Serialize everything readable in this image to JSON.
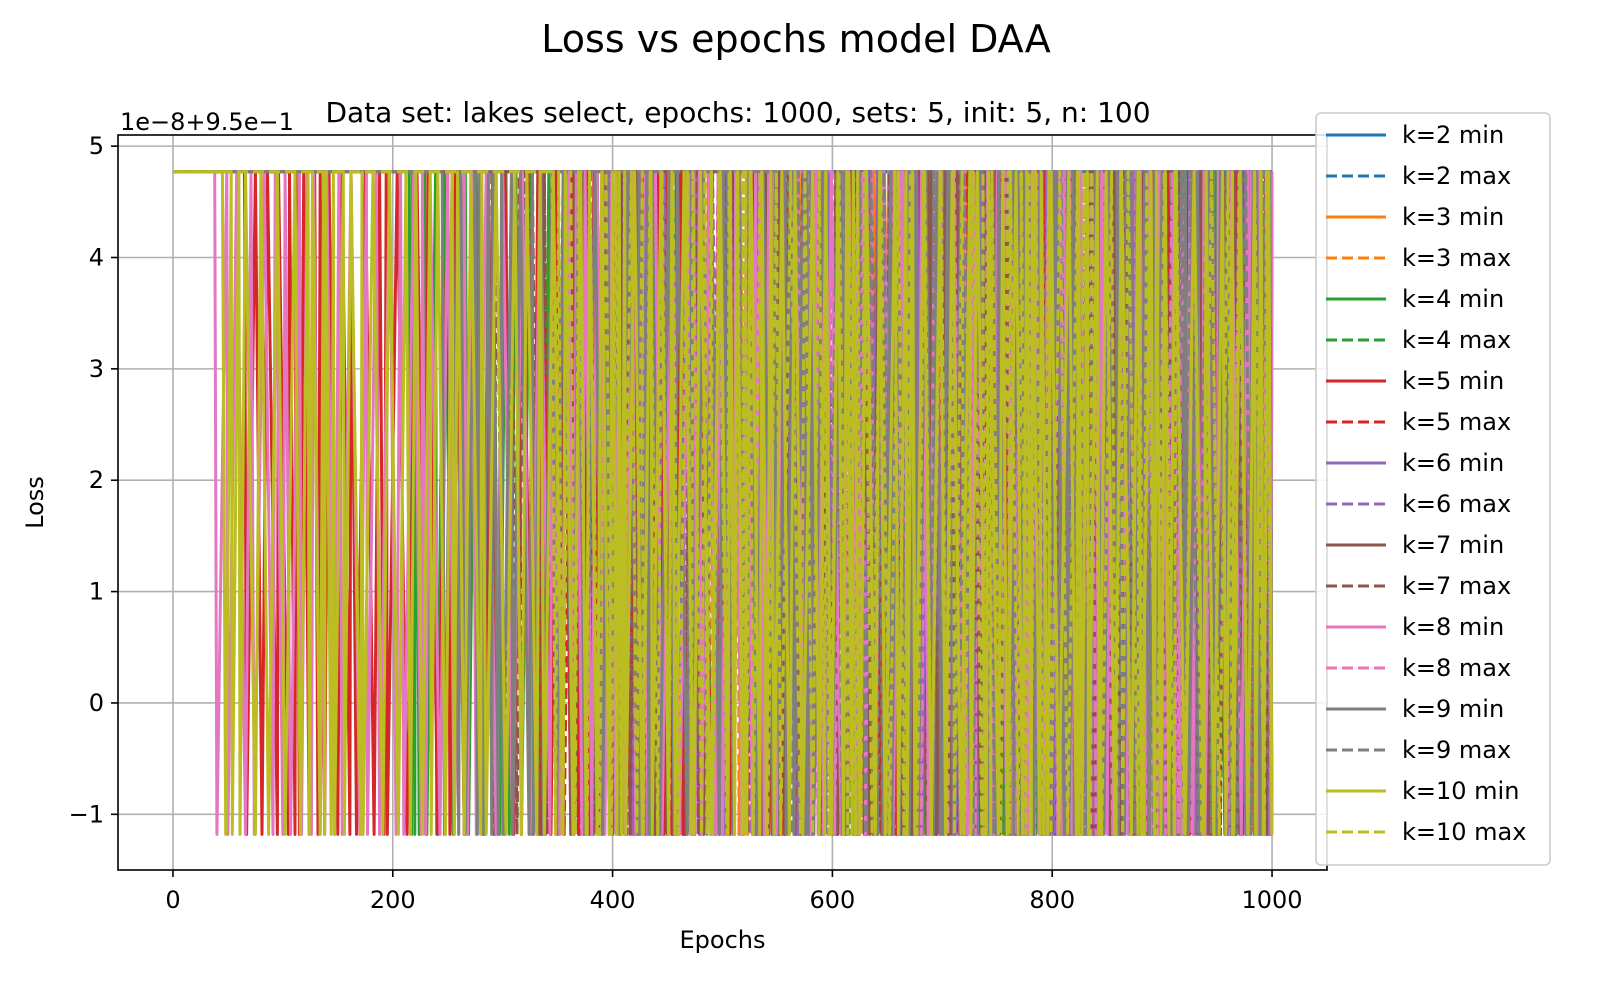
{
  "chart_data": {
    "type": "line",
    "title": "Loss vs epochs model DAA",
    "subtitle": "Data set:  lakes select, epochs: 1000, sets: 5, init: 5, n: 100",
    "xlabel": "Epochs",
    "ylabel": "Loss",
    "offset_text": "1e−8+9.5e−1",
    "xlim": [
      -50,
      1050
    ],
    "ylim": [
      -1.5,
      5.1
    ],
    "grid": true,
    "legend_placement": "right, outside",
    "x_ticks": [
      0,
      200,
      400,
      600,
      800,
      1000
    ],
    "x_tick_labels": [
      "0",
      "200",
      "400",
      "600",
      "800",
      "1000"
    ],
    "y_ticks": [
      -1,
      0,
      1,
      2,
      3,
      4,
      5
    ],
    "y_tick_labels": [
      "−1",
      "0",
      "1",
      "2",
      "3",
      "4",
      "5"
    ],
    "value_levels": {
      "high": 4.77,
      "low": -1.18
    },
    "x_range": [
      0,
      1000
    ],
    "series": [
      {
        "name": "k=2 min",
        "color": "#1f77b4",
        "dash": "solid",
        "oscillation_start": 1000
      },
      {
        "name": "k=2 max",
        "color": "#1f77b4",
        "dash": "dashed",
        "oscillation_start": 1000
      },
      {
        "name": "k=3 min",
        "color": "#ff7f0e",
        "dash": "solid",
        "oscillation_start": 500
      },
      {
        "name": "k=3 max",
        "color": "#ff7f0e",
        "dash": "dashed",
        "oscillation_start": 400
      },
      {
        "name": "k=4 min",
        "color": "#2ca02c",
        "dash": "solid",
        "oscillation_start": 215
      },
      {
        "name": "k=4 max",
        "color": "#2ca02c",
        "dash": "dashed",
        "oscillation_start": 420
      },
      {
        "name": "k=5 min",
        "color": "#d62728",
        "dash": "solid",
        "oscillation_start": 65
      },
      {
        "name": "k=5 max",
        "color": "#d62728",
        "dash": "dashed",
        "oscillation_start": 315
      },
      {
        "name": "k=6 min",
        "color": "#9467bd",
        "dash": "solid",
        "oscillation_start": 470
      },
      {
        "name": "k=6 max",
        "color": "#9467bd",
        "dash": "dashed",
        "oscillation_start": 380
      },
      {
        "name": "k=7 min",
        "color": "#8c564b",
        "dash": "solid",
        "oscillation_start": 540
      },
      {
        "name": "k=7 max",
        "color": "#8c564b",
        "dash": "dashed",
        "oscillation_start": 290
      },
      {
        "name": "k=8 min",
        "color": "#e377c2",
        "dash": "solid",
        "oscillation_start": 38
      },
      {
        "name": "k=8 max",
        "color": "#e377c2",
        "dash": "dashed",
        "oscillation_start": 600
      },
      {
        "name": "k=9 min",
        "color": "#7f7f7f",
        "dash": "solid",
        "oscillation_start": 245
      },
      {
        "name": "k=9 max",
        "color": "#7f7f7f",
        "dash": "dashed",
        "oscillation_start": 560
      },
      {
        "name": "k=10 min",
        "color": "#bcbd22",
        "dash": "solid",
        "oscillation_start": 45
      },
      {
        "name": "k=10 max",
        "color": "#bcbd22",
        "dash": "dashed",
        "oscillation_start": 345
      }
    ]
  }
}
